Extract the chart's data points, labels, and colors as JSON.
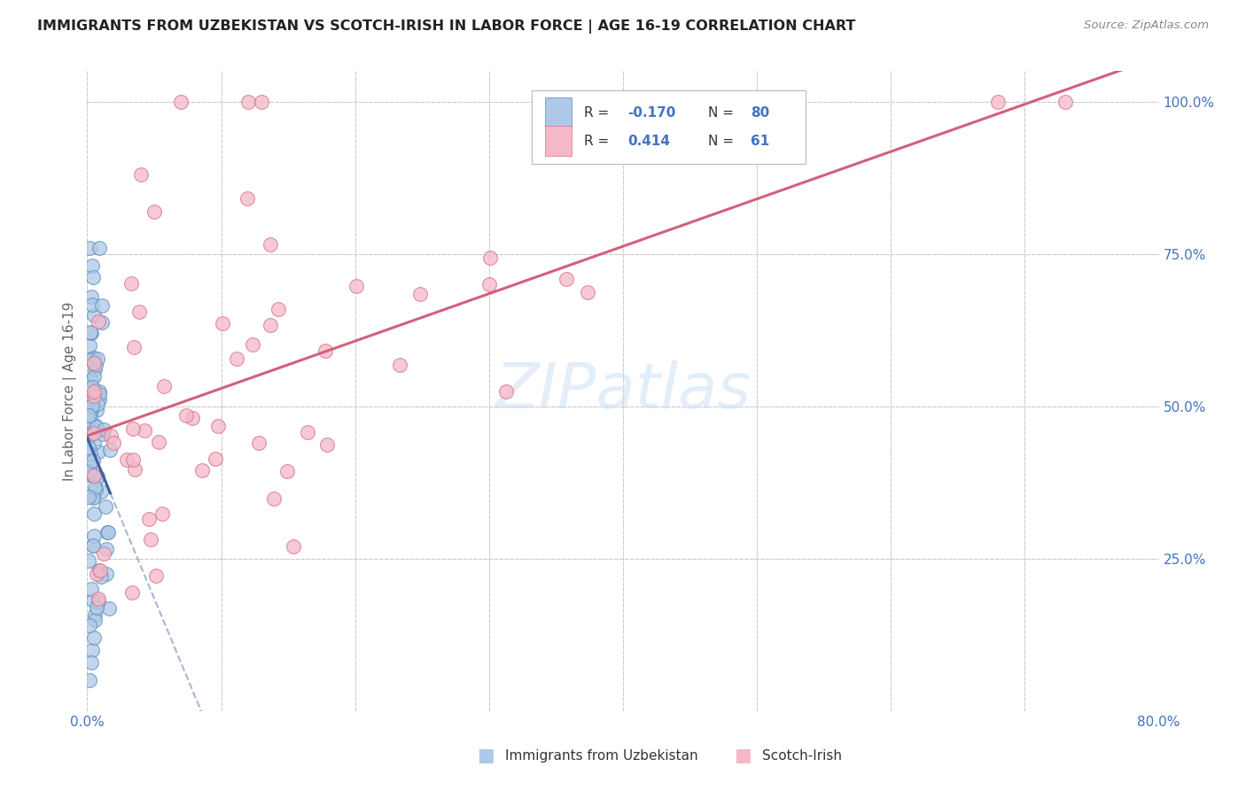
{
  "title": "IMMIGRANTS FROM UZBEKISTAN VS SCOTCH-IRISH IN LABOR FORCE | AGE 16-19 CORRELATION CHART",
  "source": "Source: ZipAtlas.com",
  "ylabel": "In Labor Force | Age 16-19",
  "xlim": [
    0.0,
    0.8
  ],
  "ylim": [
    0.0,
    1.05
  ],
  "xtick_positions": [
    0.0,
    0.1,
    0.2,
    0.3,
    0.4,
    0.5,
    0.6,
    0.7,
    0.8
  ],
  "xticklabels": [
    "0.0%",
    "",
    "",
    "",
    "",
    "",
    "",
    "",
    "80.0%"
  ],
  "ytick_positions": [
    0.0,
    0.25,
    0.5,
    0.75,
    1.0
  ],
  "yticklabels_right": [
    "",
    "25.0%",
    "50.0%",
    "75.0%",
    "100.0%"
  ],
  "background_color": "#ffffff",
  "grid_color": "#cccccc",
  "uzb_color": "#adc8e8",
  "uzb_edge": "#5b8db8",
  "uzb_line": "#3a60a0",
  "si_color": "#f4b8c8",
  "si_edge": "#d4708a",
  "si_line": "#d4607a",
  "legend_R_uzb": "-0.170",
  "legend_N_uzb": "80",
  "legend_R_si": "0.414",
  "legend_N_si": "61",
  "watermark_text": "ZIPatlas",
  "legend_label_uzb": "Immigrants from Uzbekistan",
  "legend_label_si": "Scotch-Irish"
}
